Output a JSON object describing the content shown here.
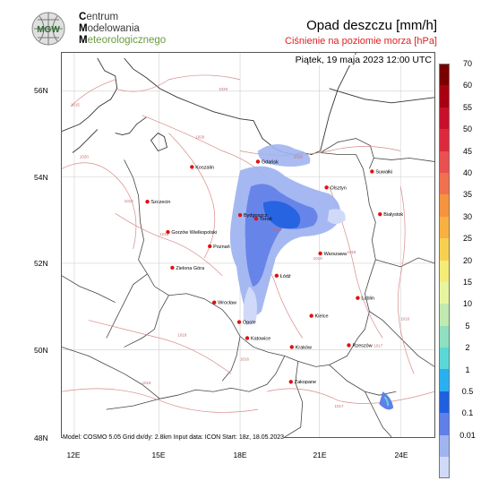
{
  "logo": {
    "text": "MGW",
    "icon": "imgw-globe-icon"
  },
  "org": {
    "line1_cap": "C",
    "line1_rest": "entrum",
    "line2_cap": "M",
    "line2_rest": "odelowania",
    "line3_cap": "M",
    "line3_rest": "eteorologicznego"
  },
  "title": "Opad deszczu [mm/h]",
  "subtitle": "Ciśnienie na poziomie morza [hPa]",
  "datetime": "Piątek, 19 maja 2023 12:00 UTC",
  "footer": "Model: COSMO 5.05  Grid dx/dy: 2.8km  Input data: ICON  Start: 18z, 18.05.2023",
  "y_axis": [
    "56N",
    "54N",
    "52N",
    "50N",
    "48N"
  ],
  "x_axis": [
    "12E",
    "15E",
    "18E",
    "21E",
    "24E"
  ],
  "cities": [
    {
      "name": "Gdańsk"
    },
    {
      "name": "Koszalin"
    },
    {
      "name": "Szczecin"
    },
    {
      "name": "Olsztyn"
    },
    {
      "name": "Suwałki"
    },
    {
      "name": "Białystok"
    },
    {
      "name": "Bydgoszcz"
    },
    {
      "name": "Toruń"
    },
    {
      "name": "Gorzów Wielkopolski"
    },
    {
      "name": "Poznań"
    },
    {
      "name": "Warszawa"
    },
    {
      "name": "Zielona Góra"
    },
    {
      "name": "Łódź"
    },
    {
      "name": "Lublin"
    },
    {
      "name": "Wrocław"
    },
    {
      "name": "Kielce"
    },
    {
      "name": "Opole"
    },
    {
      "name": "Katowice"
    },
    {
      "name": "Kraków"
    },
    {
      "name": "Rzeszów"
    },
    {
      "name": "Zakopane"
    }
  ],
  "isobars": [
    "1020",
    "1020",
    "1020",
    "1019",
    "1019",
    "1019",
    "1019",
    "1018",
    "1018",
    "1018",
    "1018",
    "1017",
    "1017",
    "1016",
    "1016",
    "1015"
  ],
  "legend": {
    "ticks": [
      "70",
      "60",
      "55",
      "50",
      "45",
      "40",
      "35",
      "30",
      "25",
      "20",
      "15",
      "10",
      "5",
      "2",
      "1",
      "0.5",
      "0.1",
      "0.01"
    ],
    "colors": [
      "#7a0000",
      "#a80010",
      "#c8102a",
      "#dc2a3c",
      "#ea5050",
      "#f07050",
      "#f5943c",
      "#f8b040",
      "#f8d050",
      "#f5ec78",
      "#e8f5a0",
      "#c0eab0",
      "#8ee0c0",
      "#5ad8d8",
      "#2ab0f0",
      "#2060e0",
      "#6080e8",
      "#a0b4f0",
      "#d0daf8"
    ]
  }
}
